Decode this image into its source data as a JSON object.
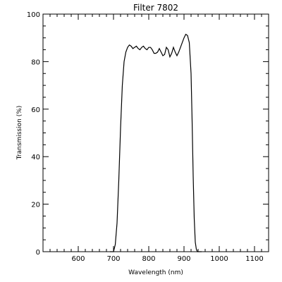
{
  "chart_data": {
    "type": "line",
    "title": "Filter 7802",
    "xlabel": "Wavelength (nm)",
    "ylabel": "Transmission (%)",
    "xlim": [
      500,
      1140
    ],
    "ylim": [
      0,
      100
    ],
    "x_ticks": [
      600,
      700,
      800,
      900,
      1000,
      1100
    ],
    "y_ticks": [
      0,
      20,
      40,
      60,
      80,
      100
    ],
    "x_minor_step": 20,
    "y_minor_step": 5,
    "grid": false,
    "series": [
      {
        "x": [
          690,
          700,
          705,
          710,
          715,
          720,
          725,
          730,
          735,
          740,
          745,
          750,
          755,
          760,
          765,
          770,
          775,
          780,
          785,
          790,
          795,
          800,
          805,
          810,
          815,
          820,
          825,
          830,
          835,
          840,
          845,
          850,
          855,
          860,
          865,
          870,
          875,
          880,
          885,
          890,
          895,
          900,
          905,
          910,
          915,
          920,
          923,
          926,
          929,
          932,
          935,
          938,
          941,
          945,
          950
        ],
        "y": [
          0,
          0,
          3,
          12,
          30,
          52,
          70,
          80,
          84,
          86,
          87,
          86.5,
          85.5,
          86,
          86.5,
          85.5,
          85,
          86,
          86.5,
          85.5,
          85,
          86,
          86,
          85,
          83.5,
          83.5,
          84,
          85.5,
          84,
          82.5,
          83,
          86,
          85,
          82,
          83.5,
          86,
          84,
          82.5,
          84,
          86,
          88,
          90,
          91.5,
          91,
          88,
          75,
          55,
          32,
          14,
          4,
          1,
          0,
          0,
          0,
          0
        ]
      }
    ]
  }
}
